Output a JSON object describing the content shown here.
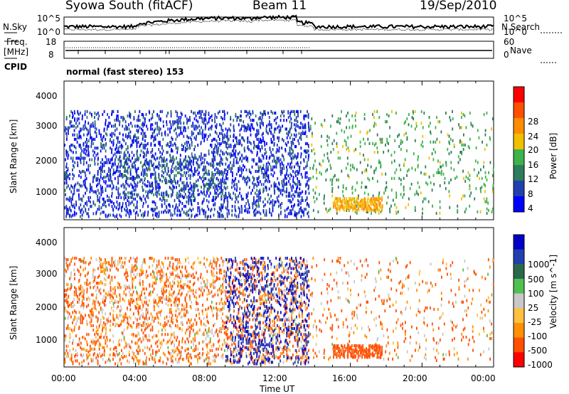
{
  "header": {
    "station": "Syowa South (fitACF)",
    "beam": "Beam 11",
    "date": "19/Sep/2010"
  },
  "noise_panel": {
    "left_label": "N.Sky",
    "right_label": "N.Search",
    "left_ticks": [
      "10^5",
      "10^0"
    ],
    "right_ticks": [
      "10^5",
      "10^0"
    ]
  },
  "freq_panel": {
    "left_label_line1": "Freq.",
    "left_label_line2": "[MHz]",
    "right_label": "Nave",
    "left_ticks": [
      "18",
      "8"
    ],
    "right_ticks": [
      "60",
      "0"
    ]
  },
  "cpid_panel": {
    "label": "CPID",
    "text": "normal (fast stereo) 153"
  },
  "x_axis": {
    "label": "Time UT",
    "ticks": [
      "00:00",
      "04:00",
      "08:00",
      "12:00",
      "16:00",
      "20:00",
      "00:00"
    ]
  },
  "colors": {
    "power_scale": [
      "#0000ff",
      "#2040b0",
      "#2e7d5a",
      "#3cb44b",
      "#f0c000",
      "#ff8c00",
      "#ff5000",
      "#ff0000"
    ],
    "velocity_scale": [
      "#ff0000",
      "#ff5000",
      "#ff9000",
      "#ffc040",
      "#c8c8c8",
      "#50c050",
      "#2a6a4a",
      "#2040b0",
      "#0000c8"
    ]
  },
  "chart_data": [
    {
      "type": "heatmap",
      "title": "Power",
      "xlabel": "",
      "ylabel": "Slant Range [km]",
      "yticks": [
        "1000",
        "2000",
        "3000",
        "4000"
      ],
      "xlim": [
        0,
        24
      ],
      "ylim": [
        200,
        4500
      ],
      "colorbar_label": "Power [dB]",
      "colorbar_ticks": [
        "4",
        "8",
        "12",
        "16",
        "20",
        "24",
        "28"
      ],
      "colorbar_range": [
        0,
        32
      ],
      "regions": [
        {
          "t0": 0,
          "t1": 13.7,
          "r0": 300,
          "r1": 3600,
          "density": 0.22,
          "value": 5
        },
        {
          "t0": 3,
          "t1": 9,
          "r0": 900,
          "r1": 2200,
          "density": 0.12,
          "value": 8
        },
        {
          "t0": 13.7,
          "t1": 24,
          "r0": 400,
          "r1": 3600,
          "density": 0.06,
          "value": 13
        },
        {
          "t0": 15.0,
          "t1": 17.8,
          "r0": 500,
          "r1": 900,
          "density": 0.55,
          "value": 20
        }
      ]
    },
    {
      "type": "heatmap",
      "title": "Velocity",
      "xlabel": "Time UT",
      "ylabel": "Slant Range [km]",
      "yticks": [
        "1000",
        "2000",
        "3000",
        "4000"
      ],
      "xlim": [
        0,
        24
      ],
      "ylim": [
        200,
        4500
      ],
      "colorbar_label": "Velocity [m s^-1]",
      "colorbar_ticks": [
        "1000",
        "500",
        "100",
        "25",
        "-25",
        "-100",
        "-500",
        "-1000"
      ],
      "colorbar_range": [
        -1000,
        1000
      ],
      "regions": [
        {
          "t0": 0,
          "t1": 13.7,
          "r0": 300,
          "r1": 3600,
          "density": 0.2,
          "value": -100
        },
        {
          "t0": 9,
          "t1": 13.7,
          "r0": 300,
          "r1": 3600,
          "density": 0.15,
          "value": 500
        },
        {
          "t0": 13.7,
          "t1": 24,
          "r0": 400,
          "r1": 3600,
          "density": 0.05,
          "value": -100
        },
        {
          "t0": 15.0,
          "t1": 17.8,
          "r0": 500,
          "r1": 900,
          "density": 0.55,
          "value": -250
        }
      ]
    }
  ]
}
